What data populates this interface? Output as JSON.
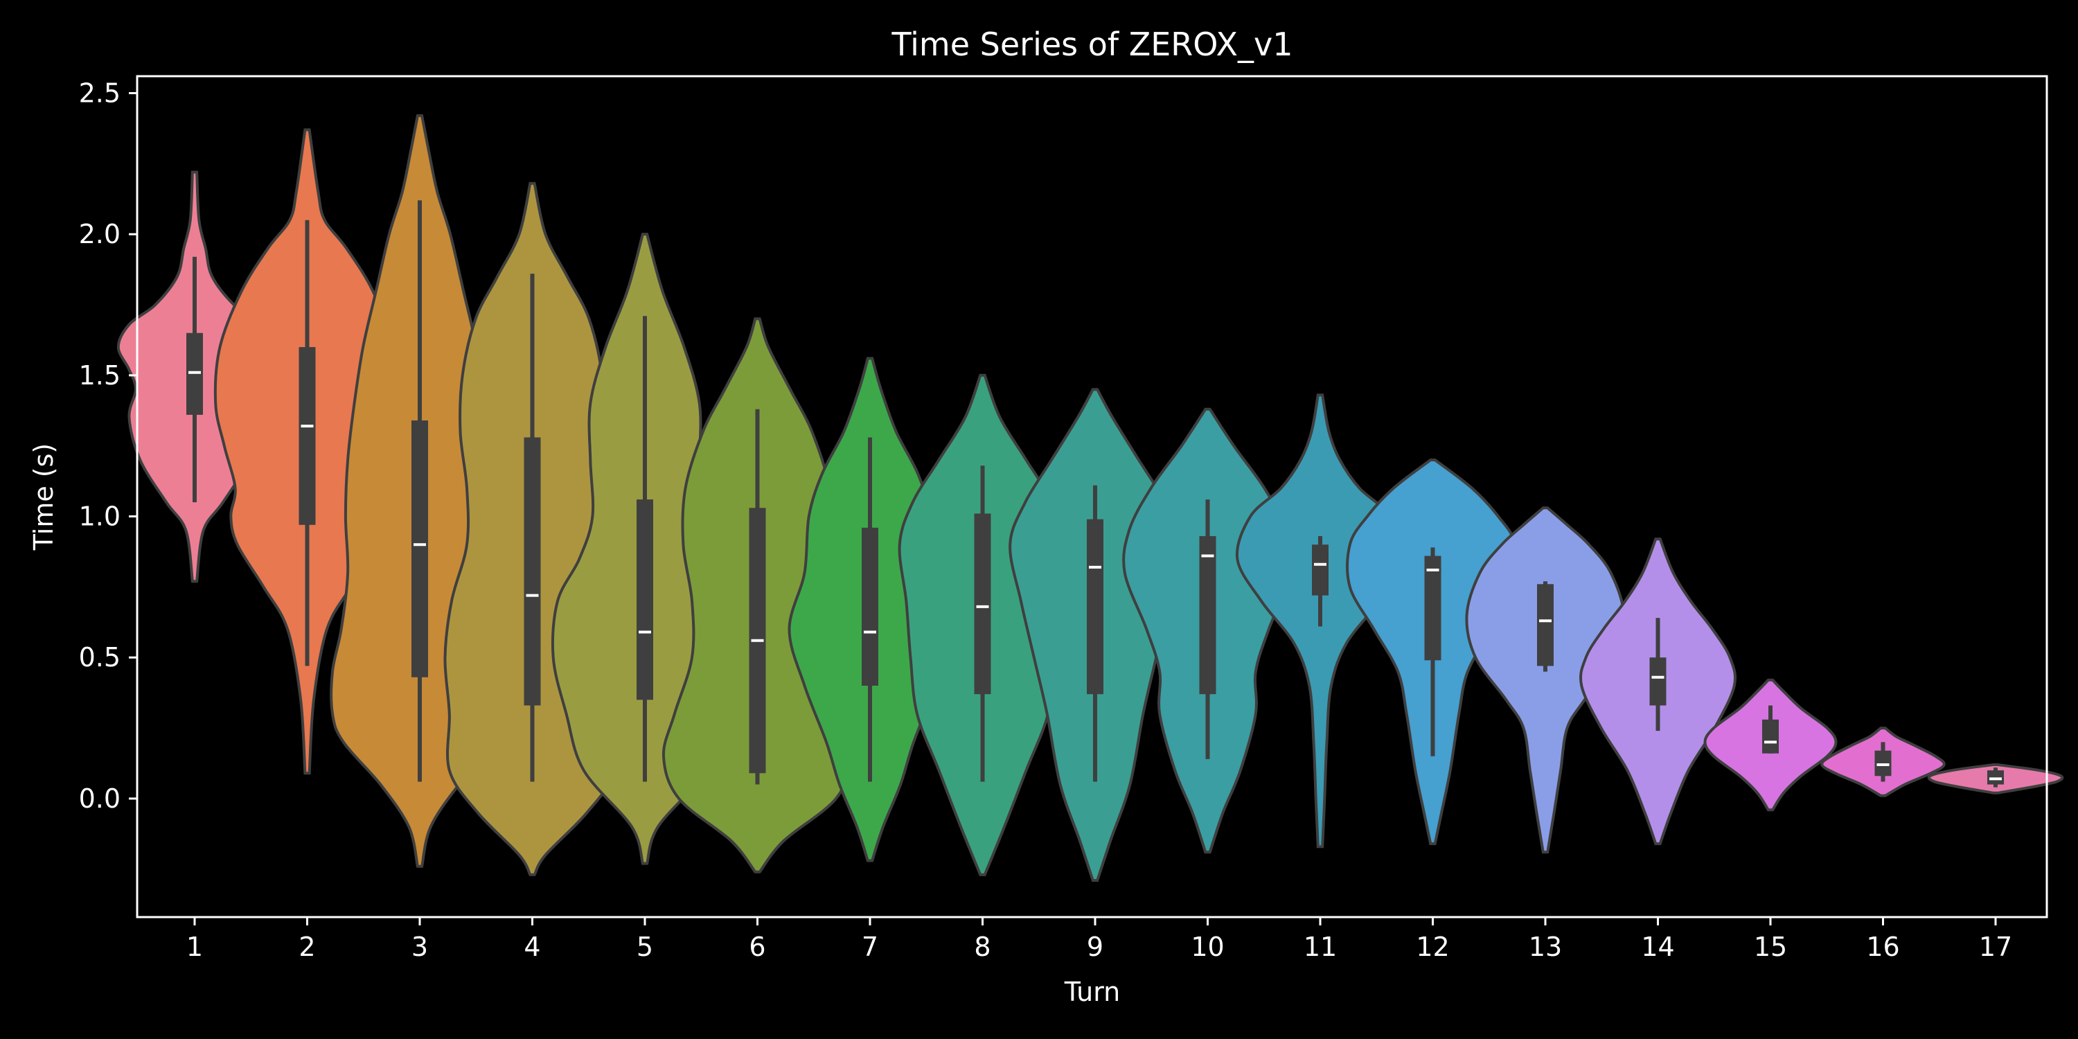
{
  "chart_data": {
    "type": "violin",
    "title": "Time Series of ZEROX_v1",
    "xlabel": "Turn",
    "ylabel": "Time (s)",
    "ylim": [
      -0.42,
      2.56
    ],
    "yticks": [
      0.0,
      0.5,
      1.0,
      1.5,
      2.0,
      2.5
    ],
    "ytick_labels": [
      "0.0",
      "0.5",
      "1.0",
      "1.5",
      "2.0",
      "2.5"
    ],
    "grid": false,
    "categories": [
      "1",
      "2",
      "3",
      "4",
      "5",
      "6",
      "7",
      "8",
      "9",
      "10",
      "11",
      "12",
      "13",
      "14",
      "15",
      "16",
      "17"
    ],
    "series": [
      {
        "median": 1.51,
        "q1": 1.36,
        "q3": 1.65,
        "whisker_low": 1.05,
        "whisker_high": 1.92,
        "kde_min": 0.77,
        "kde_max": 2.22,
        "color": "#ed7f94",
        "profile": [
          [
            0.77,
            0.01
          ],
          [
            0.95,
            0.04
          ],
          [
            1.05,
            0.13
          ],
          [
            1.2,
            0.25
          ],
          [
            1.35,
            0.3
          ],
          [
            1.45,
            0.27
          ],
          [
            1.52,
            0.3
          ],
          [
            1.6,
            0.35
          ],
          [
            1.68,
            0.3
          ],
          [
            1.75,
            0.18
          ],
          [
            1.85,
            0.08
          ],
          [
            1.95,
            0.05
          ],
          [
            2.05,
            0.02
          ],
          [
            2.22,
            0.01
          ]
        ]
      },
      {
        "median": 1.32,
        "q1": 0.97,
        "q3": 1.6,
        "whisker_low": 0.47,
        "whisker_high": 2.05,
        "kde_min": 0.09,
        "kde_max": 2.37,
        "color": "#e8784f",
        "profile": [
          [
            0.09,
            0.01
          ],
          [
            0.35,
            0.03
          ],
          [
            0.6,
            0.09
          ],
          [
            0.75,
            0.2
          ],
          [
            0.9,
            0.32
          ],
          [
            1.0,
            0.35
          ],
          [
            1.1,
            0.33
          ],
          [
            1.25,
            0.38
          ],
          [
            1.4,
            0.42
          ],
          [
            1.6,
            0.4
          ],
          [
            1.8,
            0.3
          ],
          [
            1.95,
            0.18
          ],
          [
            2.05,
            0.08
          ],
          [
            2.15,
            0.05
          ],
          [
            2.37,
            0.01
          ]
        ]
      },
      {
        "median": 0.9,
        "q1": 0.43,
        "q3": 1.34,
        "whisker_low": 0.06,
        "whisker_high": 2.12,
        "kde_min": -0.24,
        "kde_max": 2.42,
        "color": "#c78a37",
        "profile": [
          [
            -0.24,
            0.01
          ],
          [
            -0.1,
            0.05
          ],
          [
            0.05,
            0.18
          ],
          [
            0.2,
            0.35
          ],
          [
            0.3,
            0.4
          ],
          [
            0.45,
            0.4
          ],
          [
            0.6,
            0.36
          ],
          [
            0.8,
            0.33
          ],
          [
            1.0,
            0.34
          ],
          [
            1.2,
            0.33
          ],
          [
            1.4,
            0.3
          ],
          [
            1.6,
            0.26
          ],
          [
            1.8,
            0.2
          ],
          [
            2.0,
            0.14
          ],
          [
            2.15,
            0.08
          ],
          [
            2.3,
            0.04
          ],
          [
            2.42,
            0.01
          ]
        ]
      },
      {
        "median": 0.72,
        "q1": 0.33,
        "q3": 1.28,
        "whisker_low": 0.06,
        "whisker_high": 1.86,
        "kde_min": -0.27,
        "kde_max": 2.18,
        "color": "#ad9540",
        "profile": [
          [
            -0.27,
            0.01
          ],
          [
            -0.2,
            0.06
          ],
          [
            -0.05,
            0.25
          ],
          [
            0.1,
            0.38
          ],
          [
            0.3,
            0.38
          ],
          [
            0.5,
            0.4
          ],
          [
            0.7,
            0.37
          ],
          [
            0.9,
            0.3
          ],
          [
            1.1,
            0.3
          ],
          [
            1.3,
            0.33
          ],
          [
            1.5,
            0.32
          ],
          [
            1.7,
            0.26
          ],
          [
            1.85,
            0.16
          ],
          [
            2.0,
            0.06
          ],
          [
            2.18,
            0.01
          ]
        ]
      },
      {
        "median": 0.59,
        "q1": 0.35,
        "q3": 1.06,
        "whisker_low": 0.06,
        "whisker_high": 1.71,
        "kde_min": -0.23,
        "kde_max": 2.0,
        "color": "#9a9c42",
        "profile": [
          [
            -0.23,
            0.01
          ],
          [
            -0.1,
            0.06
          ],
          [
            0.1,
            0.28
          ],
          [
            0.3,
            0.36
          ],
          [
            0.5,
            0.42
          ],
          [
            0.7,
            0.4
          ],
          [
            0.85,
            0.3
          ],
          [
            1.0,
            0.24
          ],
          [
            1.2,
            0.25
          ],
          [
            1.4,
            0.25
          ],
          [
            1.6,
            0.18
          ],
          [
            1.8,
            0.08
          ],
          [
            2.0,
            0.01
          ]
        ]
      },
      {
        "median": 0.56,
        "q1": 0.09,
        "q3": 1.03,
        "whisker_low": 0.05,
        "whisker_high": 1.38,
        "kde_min": -0.26,
        "kde_max": 1.7,
        "color": "#7c9c39",
        "profile": [
          [
            -0.26,
            0.01
          ],
          [
            -0.15,
            0.12
          ],
          [
            0.0,
            0.36
          ],
          [
            0.15,
            0.43
          ],
          [
            0.3,
            0.38
          ],
          [
            0.5,
            0.3
          ],
          [
            0.7,
            0.3
          ],
          [
            0.9,
            0.34
          ],
          [
            1.1,
            0.33
          ],
          [
            1.3,
            0.25
          ],
          [
            1.45,
            0.15
          ],
          [
            1.6,
            0.05
          ],
          [
            1.7,
            0.01
          ]
        ]
      },
      {
        "median": 0.59,
        "q1": 0.4,
        "q3": 0.96,
        "whisker_low": 0.06,
        "whisker_high": 1.28,
        "kde_min": -0.22,
        "kde_max": 1.56,
        "color": "#3da84a",
        "profile": [
          [
            -0.22,
            0.01
          ],
          [
            -0.1,
            0.06
          ],
          [
            0.05,
            0.14
          ],
          [
            0.2,
            0.2
          ],
          [
            0.4,
            0.3
          ],
          [
            0.6,
            0.37
          ],
          [
            0.8,
            0.3
          ],
          [
            1.0,
            0.28
          ],
          [
            1.15,
            0.22
          ],
          [
            1.3,
            0.12
          ],
          [
            1.45,
            0.05
          ],
          [
            1.56,
            0.01
          ]
        ]
      },
      {
        "median": 0.68,
        "q1": 0.37,
        "q3": 1.01,
        "whisker_low": 0.06,
        "whisker_high": 1.18,
        "kde_min": -0.27,
        "kde_max": 1.5,
        "color": "#3aa17e",
        "profile": [
          [
            -0.27,
            0.01
          ],
          [
            -0.1,
            0.1
          ],
          [
            0.1,
            0.2
          ],
          [
            0.3,
            0.3
          ],
          [
            0.5,
            0.33
          ],
          [
            0.7,
            0.35
          ],
          [
            0.9,
            0.38
          ],
          [
            1.05,
            0.32
          ],
          [
            1.2,
            0.2
          ],
          [
            1.35,
            0.08
          ],
          [
            1.5,
            0.01
          ]
        ]
      },
      {
        "median": 0.82,
        "q1": 0.37,
        "q3": 0.99,
        "whisker_low": 0.06,
        "whisker_high": 1.11,
        "kde_min": -0.29,
        "kde_max": 1.45,
        "color": "#3a9f92",
        "profile": [
          [
            -0.29,
            0.01
          ],
          [
            -0.15,
            0.07
          ],
          [
            0.05,
            0.16
          ],
          [
            0.3,
            0.22
          ],
          [
            0.5,
            0.28
          ],
          [
            0.7,
            0.34
          ],
          [
            0.9,
            0.39
          ],
          [
            1.05,
            0.32
          ],
          [
            1.2,
            0.2
          ],
          [
            1.35,
            0.08
          ],
          [
            1.45,
            0.01
          ]
        ]
      },
      {
        "median": 0.86,
        "q1": 0.37,
        "q3": 0.93,
        "whisker_low": 0.14,
        "whisker_high": 1.06,
        "kde_min": -0.19,
        "kde_max": 1.38,
        "color": "#3b9ea3",
        "profile": [
          [
            -0.19,
            0.01
          ],
          [
            -0.05,
            0.07
          ],
          [
            0.1,
            0.15
          ],
          [
            0.3,
            0.22
          ],
          [
            0.45,
            0.22
          ],
          [
            0.6,
            0.28
          ],
          [
            0.8,
            0.38
          ],
          [
            0.95,
            0.36
          ],
          [
            1.1,
            0.26
          ],
          [
            1.25,
            0.12
          ],
          [
            1.38,
            0.01
          ]
        ]
      },
      {
        "median": 0.83,
        "q1": 0.72,
        "q3": 0.9,
        "whisker_low": 0.61,
        "whisker_high": 0.93,
        "kde_min": -0.17,
        "kde_max": 1.43,
        "color": "#3b9bb3",
        "profile": [
          [
            -0.17,
            0.01
          ],
          [
            0.0,
            0.02
          ],
          [
            0.2,
            0.03
          ],
          [
            0.4,
            0.05
          ],
          [
            0.55,
            0.12
          ],
          [
            0.7,
            0.27
          ],
          [
            0.85,
            0.38
          ],
          [
            1.0,
            0.32
          ],
          [
            1.1,
            0.18
          ],
          [
            1.2,
            0.09
          ],
          [
            1.3,
            0.04
          ],
          [
            1.43,
            0.01
          ]
        ]
      },
      {
        "median": 0.81,
        "q1": 0.49,
        "q3": 0.86,
        "whisker_low": 0.15,
        "whisker_high": 0.89,
        "kde_min": -0.16,
        "kde_max": 1.2,
        "color": "#46a0d0",
        "profile": [
          [
            -0.16,
            0.01
          ],
          [
            -0.05,
            0.04
          ],
          [
            0.1,
            0.08
          ],
          [
            0.3,
            0.12
          ],
          [
            0.45,
            0.16
          ],
          [
            0.6,
            0.27
          ],
          [
            0.75,
            0.38
          ],
          [
            0.9,
            0.38
          ],
          [
            1.0,
            0.3
          ],
          [
            1.1,
            0.18
          ],
          [
            1.2,
            0.01
          ]
        ]
      },
      {
        "median": 0.63,
        "q1": 0.47,
        "q3": 0.76,
        "whisker_low": 0.45,
        "whisker_high": 0.77,
        "kde_min": -0.19,
        "kde_max": 1.03,
        "color": "#8a9ee8",
        "profile": [
          [
            -0.19,
            0.01
          ],
          [
            -0.05,
            0.04
          ],
          [
            0.1,
            0.07
          ],
          [
            0.25,
            0.1
          ],
          [
            0.35,
            0.18
          ],
          [
            0.5,
            0.32
          ],
          [
            0.65,
            0.36
          ],
          [
            0.8,
            0.3
          ],
          [
            0.9,
            0.2
          ],
          [
            0.97,
            0.1
          ],
          [
            1.03,
            0.01
          ]
        ]
      },
      {
        "median": 0.43,
        "q1": 0.33,
        "q3": 0.5,
        "whisker_low": 0.24,
        "whisker_high": 0.64,
        "kde_min": -0.16,
        "kde_max": 0.92,
        "color": "#b38fea",
        "profile": [
          [
            -0.16,
            0.01
          ],
          [
            -0.05,
            0.06
          ],
          [
            0.1,
            0.14
          ],
          [
            0.25,
            0.26
          ],
          [
            0.4,
            0.35
          ],
          [
            0.5,
            0.33
          ],
          [
            0.6,
            0.25
          ],
          [
            0.7,
            0.15
          ],
          [
            0.8,
            0.07
          ],
          [
            0.92,
            0.01
          ]
        ]
      },
      {
        "median": 0.2,
        "q1": 0.16,
        "q3": 0.28,
        "whisker_low": 0.16,
        "whisker_high": 0.33,
        "kde_min": -0.04,
        "kde_max": 0.42,
        "color": "#d774e2",
        "profile": [
          [
            -0.04,
            0.01
          ],
          [
            0.02,
            0.06
          ],
          [
            0.08,
            0.14
          ],
          [
            0.15,
            0.26
          ],
          [
            0.2,
            0.3
          ],
          [
            0.25,
            0.26
          ],
          [
            0.32,
            0.14
          ],
          [
            0.38,
            0.06
          ],
          [
            0.42,
            0.01
          ]
        ]
      },
      {
        "median": 0.12,
        "q1": 0.08,
        "q3": 0.17,
        "whisker_low": 0.06,
        "whisker_high": 0.2,
        "kde_min": 0.01,
        "kde_max": 0.25,
        "color": "#e26fd0",
        "profile": [
          [
            0.01,
            0.01
          ],
          [
            0.05,
            0.1
          ],
          [
            0.09,
            0.22
          ],
          [
            0.12,
            0.28
          ],
          [
            0.15,
            0.24
          ],
          [
            0.19,
            0.14
          ],
          [
            0.22,
            0.06
          ],
          [
            0.25,
            0.01
          ]
        ]
      },
      {
        "median": 0.07,
        "q1": 0.05,
        "q3": 0.1,
        "whisker_low": 0.04,
        "whisker_high": 0.11,
        "kde_min": 0.02,
        "kde_max": 0.12,
        "color": "#e67aab",
        "profile": [
          [
            0.02,
            0.01
          ],
          [
            0.04,
            0.16
          ],
          [
            0.06,
            0.28
          ],
          [
            0.08,
            0.3
          ],
          [
            0.1,
            0.2
          ],
          [
            0.12,
            0.01
          ]
        ]
      }
    ]
  }
}
